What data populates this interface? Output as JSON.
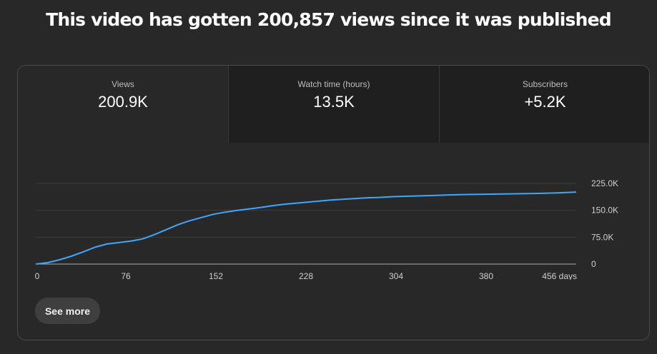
{
  "headline": "This video has gotten 200,857 views since it was published",
  "tabs": [
    {
      "label": "Views",
      "value": "200.9K",
      "selected": true
    },
    {
      "label": "Watch time (hours)",
      "value": "13.5K",
      "selected": false
    },
    {
      "label": "Subscribers",
      "value": "+5.2K",
      "selected": false
    }
  ],
  "see_more_label": "See more",
  "colors": {
    "line": "#3ea6ff",
    "background": "#282828",
    "card_border": "#4a4a4a",
    "gridline": "#3d3d3d"
  },
  "chart_data": {
    "type": "line",
    "title": "",
    "xlabel": "",
    "ylabel": "",
    "xlim": [
      0,
      456
    ],
    "ylim": [
      0,
      225000
    ],
    "x_ticks": [
      "0",
      "76",
      "152",
      "228",
      "304",
      "380",
      "456 days"
    ],
    "x_tick_values": [
      0,
      76,
      152,
      228,
      304,
      380,
      456
    ],
    "y_ticks": [
      "0",
      "75.0K",
      "150.0K",
      "225.0K"
    ],
    "y_tick_values": [
      0,
      75000,
      150000,
      225000
    ],
    "grid": true,
    "series": [
      {
        "values_x": [
          0,
          10,
          20,
          30,
          40,
          50,
          60,
          70,
          80,
          90,
          100,
          110,
          120,
          130,
          140,
          150,
          160,
          170,
          180,
          190,
          200,
          210,
          220,
          230,
          240,
          250,
          260,
          270,
          280,
          290,
          300,
          320,
          340,
          360,
          380,
          400,
          420,
          440,
          456
        ],
        "values_y": [
          0,
          4000,
          12000,
          22000,
          34000,
          47000,
          56000,
          60000,
          64000,
          70000,
          82000,
          96000,
          110000,
          121000,
          130000,
          139000,
          145000,
          150000,
          154000,
          158000,
          163000,
          167000,
          170000,
          173000,
          176000,
          179000,
          181000,
          183000,
          185000,
          186000,
          188000,
          190000,
          192000,
          194000,
          195000,
          196000,
          197000,
          198500,
          200857
        ]
      }
    ]
  }
}
